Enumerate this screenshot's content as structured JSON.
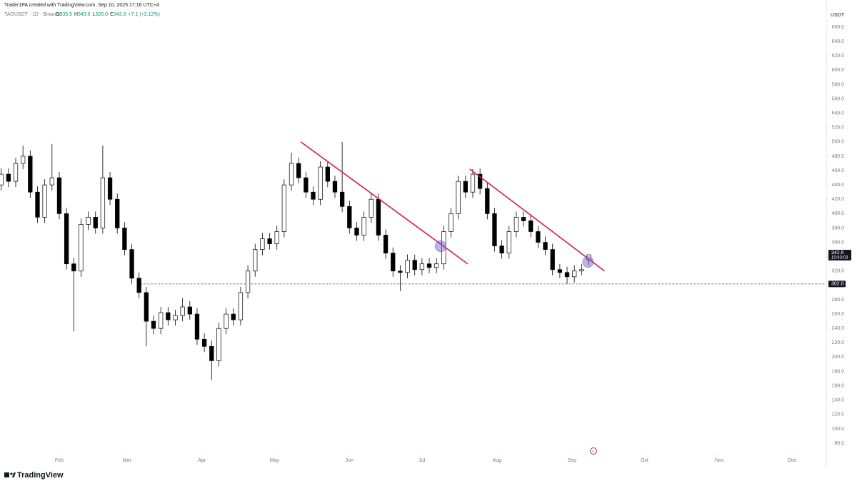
{
  "header": {
    "credit": "Trader1PA created with TradingView.com, Sep 10, 2025 17:16 UTC+4"
  },
  "legend": {
    "symbol": "TAOUSDT · 1D · Binance",
    "open_label": "O",
    "open": "335.5",
    "high_label": "H",
    "high": "343.0",
    "low_label": "L",
    "low": "328.0",
    "close_label": "C",
    "close": "342.6",
    "change": "+7.1 (+2.12%)"
  },
  "footer": {
    "brand": "TradingView"
  },
  "chart_data": {
    "type": "candlestick",
    "y_label": "USDT",
    "x": [
      8,
      11,
      14,
      17,
      20,
      23,
      26,
      29,
      32,
      35,
      38,
      41,
      44,
      47,
      50,
      53,
      56,
      59,
      62,
      65,
      68,
      71,
      74,
      77,
      80,
      83,
      86,
      89,
      92,
      95,
      98,
      101,
      104,
      107,
      110,
      113,
      116,
      119,
      122,
      125,
      128,
      131,
      134,
      137,
      140,
      143,
      146,
      149,
      152,
      155,
      158,
      161,
      164,
      167,
      170,
      173,
      176,
      179,
      182,
      185,
      188,
      191,
      194,
      197,
      200,
      203,
      206,
      209,
      212,
      215,
      218,
      221,
      224,
      227,
      230,
      233,
      236,
      239,
      242,
      245,
      248,
      251
    ],
    "open": [
      440,
      455,
      445,
      470,
      480,
      430,
      395,
      440,
      450,
      400,
      330,
      320,
      385,
      395,
      380,
      450,
      420,
      380,
      350,
      310,
      290,
      250,
      240,
      262,
      252,
      258,
      270,
      260,
      225,
      215,
      195,
      240,
      260,
      252,
      290,
      320,
      350,
      365,
      358,
      375,
      440,
      470,
      450,
      430,
      420,
      465,
      445,
      430,
      410,
      380,
      370,
      395,
      420,
      370,
      345,
      320,
      318,
      335,
      322,
      330,
      325,
      330,
      375,
      400,
      445,
      430,
      455,
      435,
      400,
      355,
      345,
      375,
      395,
      390,
      375,
      360,
      350,
      322,
      318,
      312,
      320,
      335.5
    ],
    "high": [
      463,
      463,
      478,
      495,
      488,
      438,
      448,
      497,
      458,
      408,
      338,
      393,
      403,
      403,
      495,
      458,
      428,
      388,
      358,
      318,
      298,
      258,
      270,
      270,
      266,
      282,
      278,
      268,
      233,
      223,
      248,
      268,
      268,
      298,
      328,
      358,
      373,
      373,
      383,
      448,
      485,
      478,
      458,
      438,
      473,
      473,
      453,
      500,
      418,
      388,
      403,
      428,
      428,
      378,
      353,
      328,
      343,
      343,
      338,
      338,
      338,
      383,
      408,
      453,
      453,
      462,
      463,
      443,
      408,
      363,
      383,
      403,
      403,
      398,
      383,
      368,
      358,
      330,
      326,
      328,
      330,
      343.0
    ],
    "low": [
      432,
      437,
      437,
      462,
      422,
      387,
      387,
      432,
      392,
      322,
      236,
      312,
      377,
      372,
      372,
      412,
      372,
      342,
      302,
      282,
      215,
      232,
      232,
      244,
      244,
      250,
      252,
      217,
      207,
      168,
      187,
      232,
      244,
      244,
      282,
      312,
      342,
      350,
      350,
      367,
      432,
      442,
      422,
      412,
      412,
      437,
      422,
      402,
      372,
      362,
      362,
      387,
      362,
      337,
      312,
      292,
      310,
      314,
      314,
      317,
      317,
      322,
      367,
      392,
      422,
      422,
      427,
      392,
      347,
      337,
      337,
      367,
      382,
      367,
      352,
      342,
      314,
      310,
      302,
      304,
      314,
      328.0
    ],
    "close": [
      455,
      445,
      470,
      480,
      430,
      395,
      440,
      450,
      400,
      330,
      320,
      385,
      395,
      380,
      450,
      420,
      380,
      350,
      310,
      290,
      250,
      240,
      262,
      252,
      258,
      270,
      260,
      225,
      215,
      195,
      240,
      260,
      252,
      290,
      320,
      350,
      365,
      358,
      375,
      440,
      470,
      450,
      430,
      420,
      465,
      445,
      430,
      410,
      380,
      370,
      395,
      420,
      370,
      345,
      320,
      318,
      335,
      322,
      330,
      325,
      330,
      375,
      400,
      445,
      430,
      455,
      435,
      400,
      355,
      345,
      375,
      395,
      390,
      375,
      360,
      350,
      322,
      318,
      312,
      320,
      322,
      342.6
    ],
    "up_color": "#ffffff",
    "down_color": "#000000",
    "outline_color": "#000000",
    "xlim": [
      7.5,
      348.6
    ],
    "xticks": [
      {
        "value": 32,
        "label": "Feb"
      },
      {
        "value": 60,
        "label": "Mar"
      },
      {
        "value": 91,
        "label": "Apr"
      },
      {
        "value": 121,
        "label": "May"
      },
      {
        "value": 152,
        "label": "Jun"
      },
      {
        "value": 182,
        "label": "Jul"
      },
      {
        "value": 213,
        "label": "Aug"
      },
      {
        "value": 244,
        "label": "Sep"
      },
      {
        "value": 274,
        "label": "Oct"
      },
      {
        "value": 305,
        "label": "Nov"
      },
      {
        "value": 335,
        "label": "Dec"
      }
    ],
    "ylim": [
      66.1,
      697.8
    ],
    "yticks": [
      {
        "value": 80,
        "label": "80.0"
      },
      {
        "value": 100,
        "label": "100.0"
      },
      {
        "value": 120,
        "label": "120.0"
      },
      {
        "value": 140,
        "label": "140.0"
      },
      {
        "value": 160,
        "label": "160.0"
      },
      {
        "value": 180,
        "label": "180.0"
      },
      {
        "value": 200,
        "label": "200.0"
      },
      {
        "value": 220,
        "label": "220.0"
      },
      {
        "value": 240,
        "label": "240.0"
      },
      {
        "value": 260,
        "label": "260.0"
      },
      {
        "value": 280,
        "label": "280.0"
      },
      {
        "value": 300,
        "label": "300.0"
      },
      {
        "value": 320,
        "label": "320.0"
      },
      {
        "value": 340,
        "label": "340.0"
      },
      {
        "value": 360,
        "label": "360.0"
      },
      {
        "value": 380,
        "label": "380.0"
      },
      {
        "value": 400,
        "label": "400.0"
      },
      {
        "value": 420,
        "label": "420.0"
      },
      {
        "value": 440,
        "label": "440.0"
      },
      {
        "value": 460,
        "label": "460.0"
      },
      {
        "value": 480,
        "label": "480.0"
      },
      {
        "value": 500,
        "label": "500.0"
      },
      {
        "value": 520,
        "label": "520.0"
      },
      {
        "value": 540,
        "label": "540.0"
      },
      {
        "value": 560,
        "label": "560.0"
      },
      {
        "value": 580,
        "label": "580.0"
      },
      {
        "value": 600,
        "label": "600.0"
      },
      {
        "value": 620,
        "label": "620.0"
      },
      {
        "value": 640,
        "label": "640.0"
      },
      {
        "value": 660,
        "label": "660.0"
      }
    ],
    "grid": false,
    "last_price": {
      "value": 342.6,
      "label": "342.6",
      "countdown": "10:43:03",
      "color": "#131722"
    },
    "hline": {
      "value": 302,
      "label": "302.0",
      "x_start": 64,
      "color": "#555555"
    },
    "trendlines": [
      {
        "x": [
          131.9,
          200.9
        ],
        "y": [
          500,
          330
        ],
        "color": "#d81b47"
      },
      {
        "x": [
          201.8,
          257.5
        ],
        "y": [
          462,
          320
        ],
        "color": "#d81b47"
      }
    ],
    "markers": [
      {
        "x": 189.7,
        "y": 354.5,
        "color": "#6a5acd"
      },
      {
        "x": 250.7,
        "y": 332.6,
        "color": "#6a5acd"
      }
    ]
  }
}
